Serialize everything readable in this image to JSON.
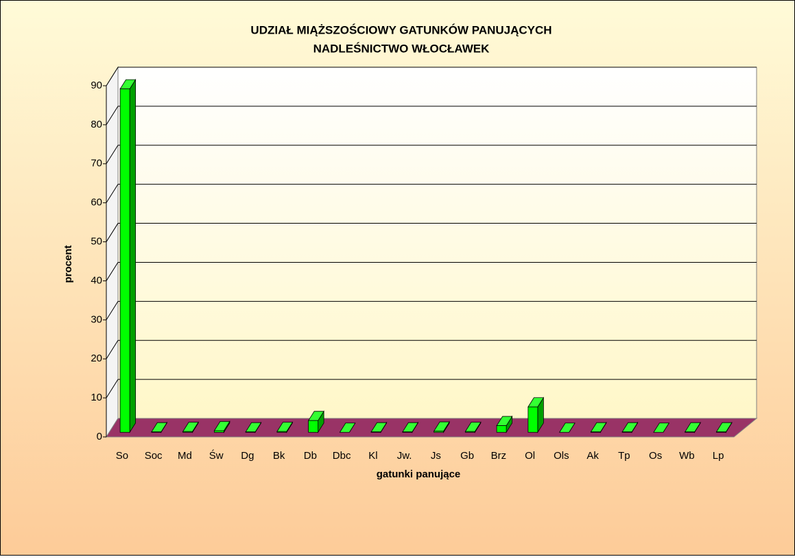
{
  "chart_data": {
    "type": "bar3d",
    "title": [
      "UDZIAŁ MIĄŻSZOŚCIOWY GATUNKÓW PANUJĄCYCH",
      "NADLEŚNICTWO WŁOCŁAWEK"
    ],
    "x_label": "gatunki panujące",
    "y_label": "procent",
    "categories": [
      "So",
      "Soc",
      "Md",
      "Św",
      "Dg",
      "Bk",
      "Db",
      "Dbc",
      "Kl",
      "Jw.",
      "Js",
      "Gb",
      "Brz",
      "Ol",
      "Ols",
      "Ak",
      "Tp",
      "Os",
      "Wb",
      "Lp"
    ],
    "values": [
      88,
      0.1,
      0.2,
      0.4,
      0.1,
      0.2,
      3,
      0,
      0.1,
      0.1,
      0.3,
      0.2,
      1.7,
      6.5,
      0,
      0.1,
      0.1,
      0,
      0.1,
      0.1
    ],
    "color": "#00ff00",
    "floor_color": "#993366",
    "ylim": [
      0,
      90
    ],
    "yticks": [
      0,
      10,
      20,
      30,
      40,
      50,
      60,
      70,
      80,
      90
    ],
    "grid": true
  }
}
